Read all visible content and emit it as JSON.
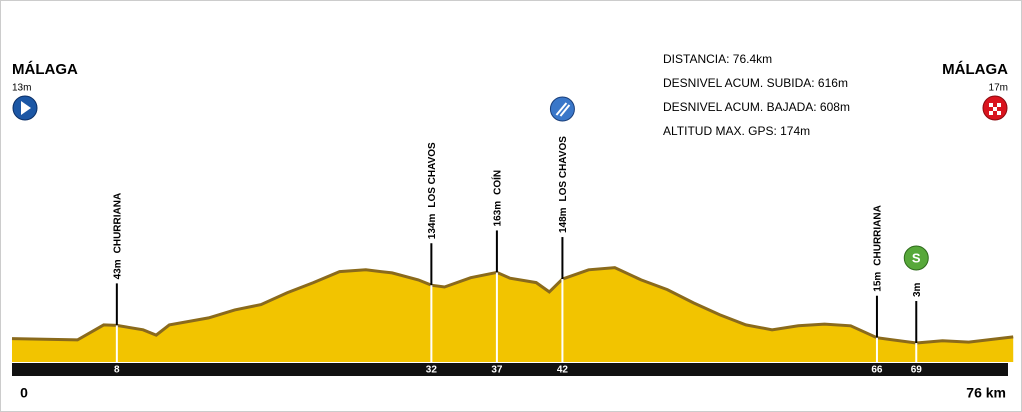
{
  "chart_data": {
    "type": "area",
    "x": [
      0,
      5,
      7,
      8,
      10,
      11,
      12,
      15,
      17,
      19,
      21,
      23,
      25,
      27,
      29,
      31,
      32,
      33,
      35,
      37,
      38,
      40,
      41,
      42,
      44,
      46,
      48,
      50,
      52,
      54,
      56,
      58,
      60,
      62,
      64,
      66,
      69,
      71,
      73,
      76.4
    ],
    "values": [
      13,
      10,
      44,
      43,
      33,
      21,
      44,
      60,
      78,
      90,
      117,
      140,
      165,
      169,
      162,
      146,
      134,
      130,
      151,
      163,
      150,
      140,
      119,
      148,
      169,
      174,
      146,
      124,
      94,
      67,
      44,
      33,
      42,
      46,
      42,
      15,
      3,
      8,
      5,
      17
    ],
    "color": "#f2c400",
    "edge_color": "#8a6a1c",
    "xlim": [
      0,
      76
    ],
    "ylim": [
      -40,
      300
    ],
    "xticks": [
      0,
      8,
      32,
      37,
      42,
      66,
      69,
      {
        "value": 76,
        "label": "76 km"
      }
    ],
    "start": {
      "name": "MÁLAGA",
      "altitude_label": "13m"
    },
    "finish": {
      "name": "MÁLAGA",
      "altitude_label": "17m"
    },
    "markers": {
      "x": [
        8,
        32,
        37,
        42,
        66,
        69
      ],
      "values": [
        43,
        134,
        163,
        148,
        15,
        3
      ],
      "value_labels": [
        "43m",
        "134m",
        "163m",
        "148m",
        "15m",
        "3m"
      ],
      "labels": [
        "CHURRIANA",
        "LOS CHAVOS",
        "COÍN",
        "LOS CHAVOS",
        "CHURRIANA",
        null
      ]
    },
    "info": [
      "DISTANCIA: 76.4km",
      "DESNIVEL ACUM. SUBIDA: 616m",
      "DESNIVEL ACUM. BAJADA: 608m",
      "ALTITUD MAX. GPS: 174m"
    ]
  }
}
